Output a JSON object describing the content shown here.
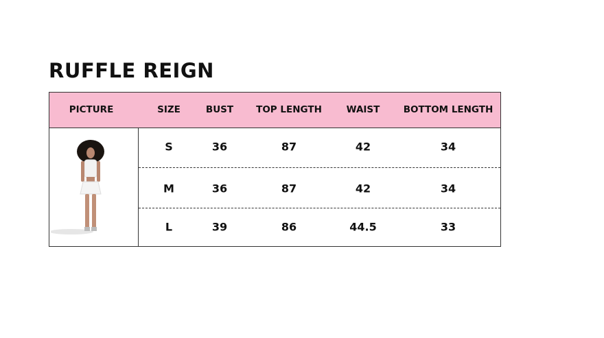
{
  "title": "RUFFLE REIGN",
  "headers": [
    "PICTURE",
    "SIZE",
    "BUST",
    "TOP LENGTH",
    "WAIST",
    "BOTTOM LENGTH"
  ],
  "rows": [
    {
      "size": "S",
      "bust": "36",
      "top_length": "87",
      "waist": "42",
      "bottom_length": "34"
    },
    {
      "size": "M",
      "bust": "36",
      "top_length": "87",
      "waist": "42",
      "bottom_length": "34"
    },
    {
      "size": "L",
      "bust": "39",
      "top_length": "86",
      "waist": "44.5",
      "bottom_length": "33"
    }
  ],
  "colors": {
    "header_bg": "#f8bbd0",
    "border": "#333333"
  }
}
